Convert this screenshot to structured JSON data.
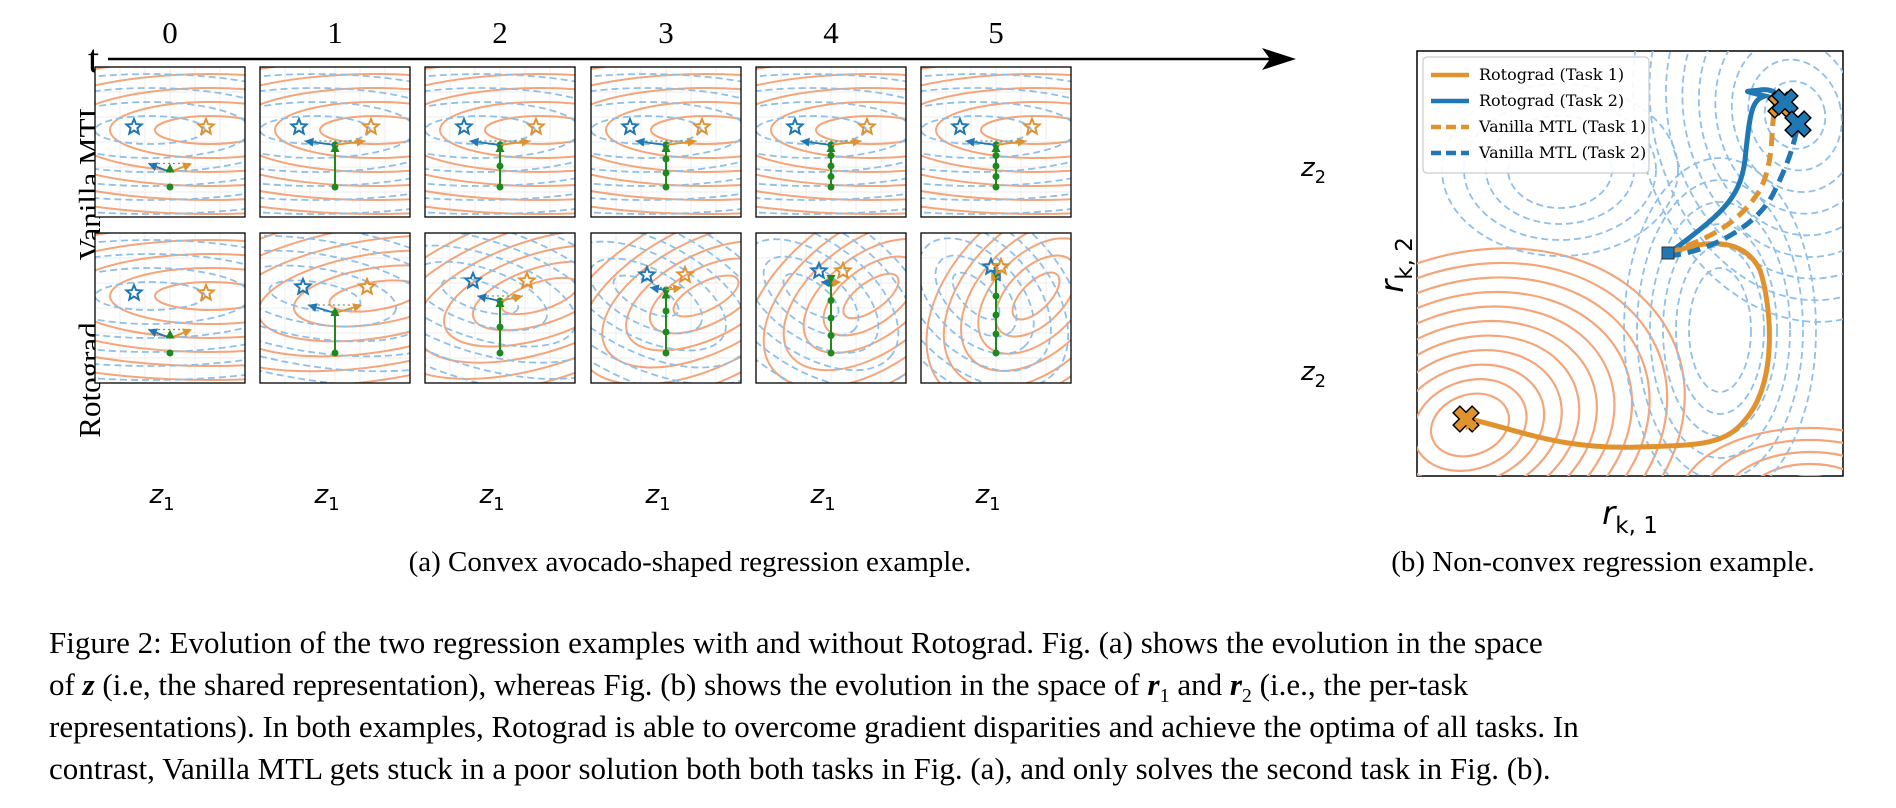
{
  "figure": {
    "time_axis": {
      "label": "t",
      "ticks": [
        "0",
        "1",
        "2",
        "3",
        "4",
        "5"
      ]
    },
    "rows": [
      {
        "label": "Vanilla MTL"
      },
      {
        "label": "Rotograd"
      }
    ],
    "z_labels": {
      "x": "z",
      "x_sub": "1",
      "y": "z",
      "y_sub": "2"
    },
    "subcaption_a": "(a) Convex avocado-shaped regression example.",
    "subcaption_b": "(b) Non-convex regression example.",
    "panel_b": {
      "xlabel": "r",
      "xlabel_sub": "k, 1",
      "ylabel": "r",
      "ylabel_sub": "k, 2",
      "legend": [
        {
          "label": "Rotograd (Task 1)",
          "color": "#e0922f",
          "style": "solid"
        },
        {
          "label": "Rotograd (Task 2)",
          "color": "#1f77b4",
          "style": "solid"
        },
        {
          "label": "Vanilla MTL (Task 1)",
          "color": "#e0922f",
          "style": "dashed"
        },
        {
          "label": "Vanilla MTL (Task 2)",
          "color": "#1f77b4",
          "style": "dashed"
        }
      ]
    },
    "colors": {
      "task1": "#e0922f",
      "task2": "#1f77b4",
      "contour1": "#f4a57a",
      "contour2": "#8fc0ea",
      "shared": "#1e8a1e"
    }
  },
  "caption": {
    "line1": "Figure 2: Evolution of the two regression examples with and without Rotograd. Fig. (a) shows the evolution in the space",
    "line2_a": "of ",
    "line2_z": "z",
    "line2_b": " (i.e, the shared representation), whereas Fig. (b) shows the evolution in the space of ",
    "line2_r1": "r",
    "line2_r1_sub": "1",
    "line2_c": " and ",
    "line2_r2": "r",
    "line2_r2_sub": "2",
    "line2_d": " (i.e., the per-task",
    "line3": "representations). In both examples, Rotograd is able to overcome gradient disparities and achieve the optima of all tasks. In",
    "line4": "contrast, Vanilla MTL gets stuck in a poor solution both both tasks in Fig. (a), and only solves the second task in Fig. (b)."
  }
}
